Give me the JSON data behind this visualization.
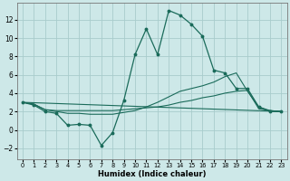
{
  "xlabel": "Humidex (Indice chaleur)",
  "xlim": [
    -0.5,
    23.5
  ],
  "ylim": [
    -3.2,
    13.8
  ],
  "xticks": [
    0,
    1,
    2,
    3,
    4,
    5,
    6,
    7,
    8,
    9,
    10,
    11,
    12,
    13,
    14,
    15,
    16,
    17,
    18,
    19,
    20,
    21,
    22,
    23
  ],
  "yticks": [
    -2,
    0,
    2,
    4,
    6,
    8,
    10,
    12
  ],
  "bg_color": "#cde8e8",
  "grid_color": "#a8cccc",
  "line_color": "#1a6b5a",
  "line1_x": [
    0,
    1,
    2,
    3,
    4,
    5,
    6,
    7,
    8,
    9,
    10,
    11,
    12,
    13,
    14,
    15,
    16,
    17,
    18,
    19,
    20,
    21,
    22,
    23
  ],
  "line1_y": [
    3.0,
    2.7,
    2.0,
    1.8,
    0.5,
    0.6,
    0.5,
    -1.7,
    -0.3,
    3.2,
    8.2,
    11.0,
    8.2,
    13.0,
    12.5,
    11.5,
    10.2,
    6.5,
    6.2,
    4.5,
    4.5,
    2.5,
    2.0,
    2.0
  ],
  "line2_x": [
    0,
    1,
    2,
    3,
    4,
    5,
    6,
    7,
    8,
    9,
    10,
    11,
    12,
    13,
    14,
    15,
    16,
    17,
    18,
    19,
    20,
    21,
    22,
    23
  ],
  "line2_y": [
    3.0,
    2.8,
    2.2,
    2.1,
    2.1,
    2.1,
    2.1,
    2.1,
    2.1,
    2.2,
    2.3,
    2.4,
    2.5,
    2.7,
    3.0,
    3.2,
    3.5,
    3.7,
    4.0,
    4.2,
    4.3,
    2.3,
    2.1,
    2.0
  ],
  "line3_x": [
    0,
    1,
    2,
    3,
    4,
    5,
    6,
    7,
    8,
    9,
    10,
    11,
    12,
    13,
    14,
    15,
    16,
    17,
    18,
    19,
    20,
    21,
    22,
    23
  ],
  "line3_y": [
    3.0,
    2.8,
    2.2,
    2.0,
    1.8,
    1.8,
    1.7,
    1.7,
    1.7,
    1.9,
    2.1,
    2.5,
    3.0,
    3.6,
    4.2,
    4.5,
    4.8,
    5.2,
    5.8,
    6.2,
    4.2,
    2.5,
    2.1,
    2.0
  ],
  "line4_x": [
    0,
    23
  ],
  "line4_y": [
    3.0,
    2.0
  ]
}
